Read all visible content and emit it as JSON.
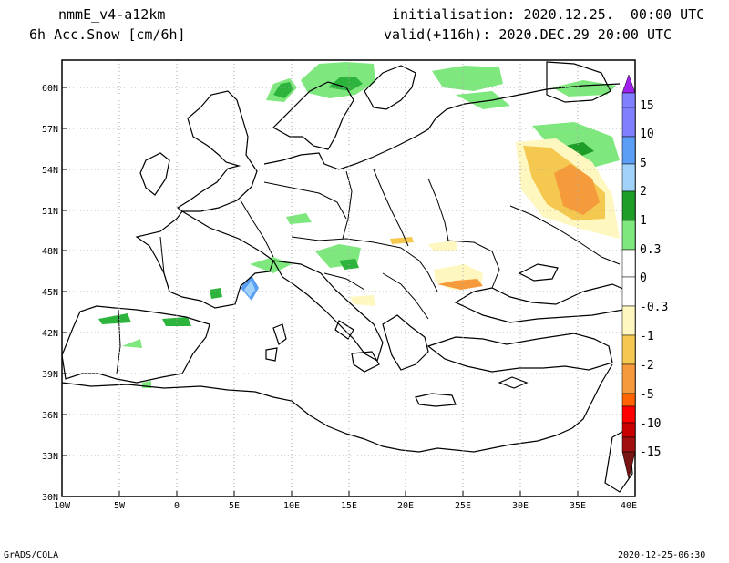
{
  "header": {
    "model": "nmmE_v4-a12km",
    "variable": "6h Acc.Snow [cm/6h]",
    "init": "initialisation: 2020.12.25.  00:00 UTC",
    "valid": "valid(+116h): 2020.DEC.29 20:00 UTC"
  },
  "footer": {
    "left": "GrADS/COLA",
    "right": "2020-12-25-06:30"
  },
  "map": {
    "lat_labels": [
      "60N",
      "57N",
      "54N",
      "51N",
      "48N",
      "45N",
      "42N",
      "39N",
      "36N",
      "33N",
      "30N"
    ],
    "lat_values": [
      60,
      57,
      54,
      51,
      48,
      45,
      42,
      39,
      36,
      33,
      30
    ],
    "lon_labels": [
      "10W",
      "5W",
      "0",
      "5E",
      "10E",
      "15E",
      "20E",
      "25E",
      "30E",
      "35E",
      "40E"
    ],
    "lon_values": [
      -10,
      -5,
      0,
      5,
      10,
      15,
      20,
      25,
      30,
      35,
      40
    ],
    "lat_range": [
      30,
      62
    ],
    "lon_range": [
      -10,
      40
    ]
  },
  "legend": {
    "labels": [
      "15",
      "10",
      "5",
      "2",
      "1",
      "0.3",
      "0",
      "-0.3",
      "-1",
      "-2",
      "-5",
      "-10",
      "-15"
    ],
    "colors": [
      "#a020f0",
      "#8080ff",
      "#5a9ef5",
      "#a0d2fa",
      "#1e9e28",
      "#2cb43c",
      "#7ee87e",
      "#ffffff",
      "#ffffff",
      "#fff7c0",
      "#f5c850",
      "#f59b3c",
      "#ff6400",
      "#ff0000",
      "#c80000",
      "#a01010",
      "#781414"
    ]
  }
}
